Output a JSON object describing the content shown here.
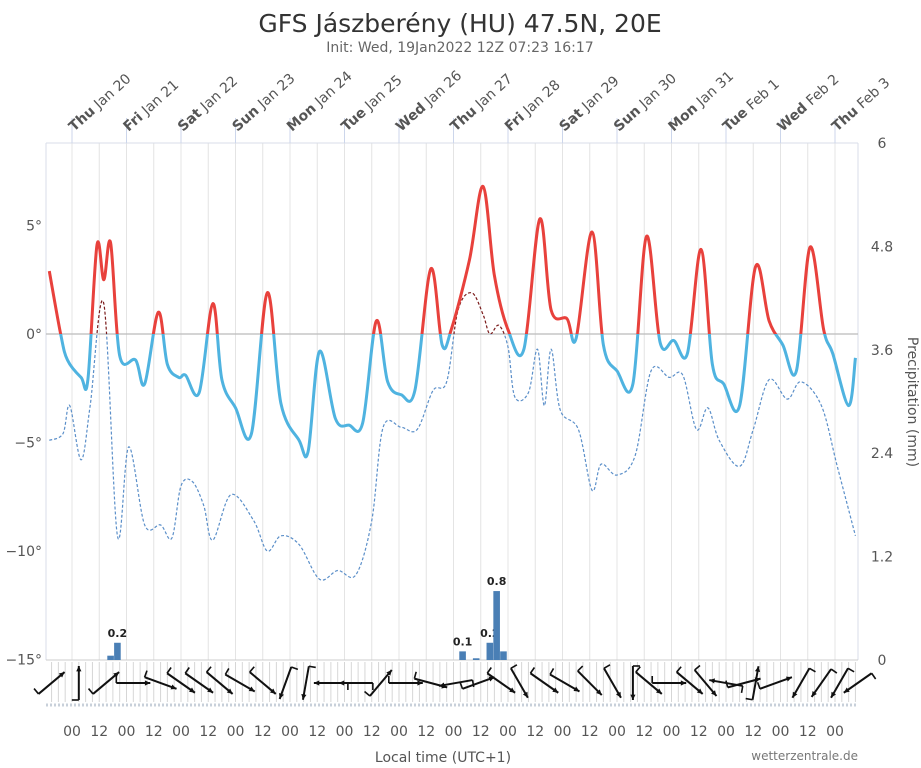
{
  "chart_data": {
    "type": "line",
    "title": "GFS Jászberény (HU) 47.5N, 20E",
    "subtitle": "Init: Wed, 19Jan2022 12Z 07:23 16:17",
    "xlabel": "Local time (UTC+1)",
    "ylabel_right": "Precipitation (mm)",
    "credit": "wetterzentrale.de",
    "top_day_labels": [
      {
        "dow": "Thu",
        "date": "Jan 20"
      },
      {
        "dow": "Fri",
        "date": "Jan 21"
      },
      {
        "dow": "Sat",
        "date": "Jan 22"
      },
      {
        "dow": "Sun",
        "date": "Jan 23"
      },
      {
        "dow": "Mon",
        "date": "Jan 24"
      },
      {
        "dow": "Tue",
        "date": "Jan 25"
      },
      {
        "dow": "Wed",
        "date": "Jan 26"
      },
      {
        "dow": "Thu",
        "date": "Jan 27"
      },
      {
        "dow": "Fri",
        "date": "Jan 28"
      },
      {
        "dow": "Sat",
        "date": "Jan 29"
      },
      {
        "dow": "Sun",
        "date": "Jan 30"
      },
      {
        "dow": "Mon",
        "date": "Jan 31"
      },
      {
        "dow": "Tue",
        "date": "Feb 1"
      },
      {
        "dow": "Wed",
        "date": "Feb 2"
      },
      {
        "dow": "Thu",
        "date": "Feb 3"
      }
    ],
    "bottom_tick_labels": [
      "00",
      "12",
      "00",
      "12",
      "00",
      "12",
      "00",
      "12",
      "00",
      "12",
      "00",
      "12",
      "00",
      "12",
      "00",
      "12",
      "00",
      "12",
      "00",
      "12",
      "00",
      "12",
      "00",
      "12",
      "00",
      "12",
      "00",
      "12",
      "00"
    ],
    "y_left": {
      "ticks": [
        "5°",
        "0°",
        "−5°",
        "−10°",
        "−15°"
      ],
      "values": [
        5,
        0,
        -5,
        -10,
        -15
      ],
      "range": [
        -15,
        8.7
      ]
    },
    "y_right": {
      "ticks": [
        "6",
        "4.8",
        "3.6",
        "2.4",
        "1.2",
        "0"
      ],
      "values": [
        6,
        4.8,
        3.6,
        2.4,
        1.2,
        0
      ],
      "range": [
        0,
        6
      ]
    },
    "colors": {
      "temp_above_zero": "#e8413c",
      "temp_below_zero": "#4fb3e0",
      "dew_above_zero": "#7a1a1a",
      "dew_below_zero": "#5b8fc9",
      "precip": "#4a7fb5",
      "zero_line": "#bbbbbb"
    },
    "series": [
      {
        "kind": "temperature",
        "style": "solid",
        "points": [
          [
            "01-19 14",
            2.9
          ],
          [
            "01-19 19",
            0
          ],
          [
            "01-19 22",
            -1.2
          ],
          [
            "01-20 04",
            -2.0
          ],
          [
            "01-20 07",
            -2.1
          ],
          [
            "01-20 11",
            4.1
          ],
          [
            "01-20 14",
            2.5
          ],
          [
            "01-20 17",
            4.2
          ],
          [
            "01-20 21",
            -1.0
          ],
          [
            "01-21 04",
            -1.2
          ],
          [
            "01-21 08",
            -2.3
          ],
          [
            "01-21 14",
            1.0
          ],
          [
            "01-21 18",
            -1.4
          ],
          [
            "01-21 23",
            -2.0
          ],
          [
            "01-22 02",
            -1.9
          ],
          [
            "01-22 08",
            -2.7
          ],
          [
            "01-22 14",
            1.4
          ],
          [
            "01-22 18",
            -2.1
          ],
          [
            "01-23 00",
            -3.4
          ],
          [
            "01-23 07",
            -4.6
          ],
          [
            "01-23 14",
            1.9
          ],
          [
            "01-23 20",
            -3.2
          ],
          [
            "01-24 04",
            -4.9
          ],
          [
            "01-24 08",
            -5.4
          ],
          [
            "01-24 13",
            -0.8
          ],
          [
            "01-24 20",
            -3.9
          ],
          [
            "01-25 02",
            -4.2
          ],
          [
            "01-25 08",
            -4.1
          ],
          [
            "01-25 14",
            0.6
          ],
          [
            "01-25 19",
            -2.2
          ],
          [
            "01-26 01",
            -2.8
          ],
          [
            "01-26 07",
            -2.6
          ],
          [
            "01-26 14",
            3.0
          ],
          [
            "01-26 19",
            -0.5
          ],
          [
            "01-26 23",
            0.2
          ],
          [
            "01-27 07",
            3.4
          ],
          [
            "01-27 13",
            6.8
          ],
          [
            "01-27 18",
            2.7
          ],
          [
            "01-28 00",
            0.2
          ],
          [
            "01-28 07",
            -0.7
          ],
          [
            "01-28 14",
            5.3
          ],
          [
            "01-28 19",
            1.1
          ],
          [
            "01-29 02",
            0.7
          ],
          [
            "01-29 06",
            -0.2
          ],
          [
            "01-29 13",
            4.7
          ],
          [
            "01-29 18",
            -0.5
          ],
          [
            "01-30 00",
            -1.7
          ],
          [
            "01-30 07",
            -2.3
          ],
          [
            "01-30 13",
            4.5
          ],
          [
            "01-30 19",
            -0.4
          ],
          [
            "01-31 01",
            -0.3
          ],
          [
            "01-31 07",
            -0.9
          ],
          [
            "01-31 13",
            3.9
          ],
          [
            "01-31 18",
            -1.4
          ],
          [
            "01-31 23",
            -2.3
          ],
          [
            "02-01 06",
            -3.3
          ],
          [
            "02-01 13",
            3.1
          ],
          [
            "02-01 19",
            0.6
          ],
          [
            "02-02 01",
            -0.5
          ],
          [
            "02-02 07",
            -1.7
          ],
          [
            "02-02 13",
            4.0
          ],
          [
            "02-02 19",
            0.2
          ],
          [
            "02-02 23",
            -0.9
          ],
          [
            "02-03 06",
            -3.3
          ],
          [
            "02-03 09",
            -1.1
          ]
        ]
      },
      {
        "kind": "dewpoint",
        "style": "dashed",
        "points": [
          [
            "01-19 14",
            -4.9
          ],
          [
            "01-19 20",
            -4.6
          ],
          [
            "01-19 23",
            -3.3
          ],
          [
            "01-20 04",
            -5.8
          ],
          [
            "01-20 08",
            -3.3
          ],
          [
            "01-20 14",
            1.4
          ],
          [
            "01-20 20",
            -9.3
          ],
          [
            "01-21 01",
            -5.2
          ],
          [
            "01-21 08",
            -8.8
          ],
          [
            "01-21 15",
            -8.8
          ],
          [
            "01-21 20",
            -9.4
          ],
          [
            "01-22 00",
            -7.0
          ],
          [
            "01-22 05",
            -6.8
          ],
          [
            "01-22 10",
            -7.9
          ],
          [
            "01-22 14",
            -9.5
          ],
          [
            "01-22 22",
            -7.4
          ],
          [
            "01-23 08",
            -8.6
          ],
          [
            "01-23 14",
            -10.0
          ],
          [
            "01-23 20",
            -9.3
          ],
          [
            "01-24 04",
            -9.7
          ],
          [
            "01-24 13",
            -11.3
          ],
          [
            "01-24 21",
            -10.9
          ],
          [
            "01-25 05",
            -11.1
          ],
          [
            "01-25 12",
            -8.6
          ],
          [
            "01-25 17",
            -4.3
          ],
          [
            "01-26 01",
            -4.3
          ],
          [
            "01-26 08",
            -4.4
          ],
          [
            "01-26 15",
            -2.6
          ],
          [
            "01-26 21",
            -2.2
          ],
          [
            "01-27 02",
            1.1
          ],
          [
            "01-27 08",
            1.9
          ],
          [
            "01-27 13",
            0.9
          ],
          [
            "01-27 16",
            0
          ],
          [
            "01-27 20",
            0.4
          ],
          [
            "01-28 00",
            -0.6
          ],
          [
            "01-28 03",
            -2.9
          ],
          [
            "01-28 09",
            -2.7
          ],
          [
            "01-28 13",
            -0.7
          ],
          [
            "01-28 16",
            -3.3
          ],
          [
            "01-28 19",
            -0.7
          ],
          [
            "01-28 23",
            -3.5
          ],
          [
            "01-29 07",
            -4.4
          ],
          [
            "01-29 13",
            -7.2
          ],
          [
            "01-29 17",
            -6.0
          ],
          [
            "01-30 00",
            -6.5
          ],
          [
            "01-30 08",
            -5.6
          ],
          [
            "01-30 15",
            -1.7
          ],
          [
            "01-30 23",
            -2.0
          ],
          [
            "01-31 05",
            -1.9
          ],
          [
            "01-31 11",
            -4.4
          ],
          [
            "01-31 16",
            -3.4
          ],
          [
            "01-31 21",
            -4.9
          ],
          [
            "02-01 06",
            -6.1
          ],
          [
            "02-01 12",
            -4.4
          ],
          [
            "02-01 19",
            -2.1
          ],
          [
            "02-02 03",
            -3.0
          ],
          [
            "02-02 09",
            -2.2
          ],
          [
            "02-02 18",
            -3.3
          ],
          [
            "02-03 01",
            -6.1
          ],
          [
            "02-03 09",
            -9.3
          ]
        ]
      }
    ],
    "precipitation": [
      {
        "t": "01-20 17",
        "mm": 0.05,
        "label": ""
      },
      {
        "t": "01-20 20",
        "mm": 0.2,
        "label": "0.2"
      },
      {
        "t": "01-27 04",
        "mm": 0.1,
        "label": "0.1"
      },
      {
        "t": "01-27 10",
        "mm": 0.02,
        "label": ""
      },
      {
        "t": "01-27 16",
        "mm": 0.2,
        "label": "0.2"
      },
      {
        "t": "01-27 19",
        "mm": 0.8,
        "label": "0.8"
      },
      {
        "t": "01-27 22",
        "mm": 0.1,
        "label": ""
      }
    ],
    "wind_arrows_heading_deg": [
      [
        "01-19 15",
        50
      ],
      [
        "01-20 03",
        0
      ],
      [
        "01-20 15",
        50
      ],
      [
        "01-21 03",
        90
      ],
      [
        "01-21 15",
        110
      ],
      [
        "01-22 00",
        125
      ],
      [
        "01-22 08",
        125
      ],
      [
        "01-22 17",
        130
      ],
      [
        "01-23 02",
        120
      ],
      [
        "01-23 12",
        130
      ],
      [
        "01-23 22",
        200
      ],
      [
        "01-24 07",
        190
      ],
      [
        "01-24 18",
        270
      ],
      [
        "01-25 05",
        270
      ],
      [
        "01-25 16",
        40
      ],
      [
        "01-26 03",
        90
      ],
      [
        "01-26 14",
        105
      ],
      [
        "01-27 01",
        260
      ],
      [
        "01-27 11",
        70
      ],
      [
        "01-27 21",
        125
      ],
      [
        "01-28 05",
        150
      ],
      [
        "01-28 16",
        125
      ],
      [
        "01-29 01",
        120
      ],
      [
        "01-29 12",
        135
      ],
      [
        "01-29 22",
        150
      ],
      [
        "01-30 07",
        180
      ],
      [
        "01-30 14",
        130
      ],
      [
        "01-30 23",
        90
      ],
      [
        "01-31 08",
        130
      ],
      [
        "01-31 15",
        140
      ],
      [
        "02-01 00",
        280
      ],
      [
        "02-01 08",
        75
      ],
      [
        "02-01 13",
        10
      ],
      [
        "02-01 22",
        70
      ],
      [
        "02-02 09",
        210
      ],
      [
        "02-02 18",
        215
      ],
      [
        "02-03 02",
        210
      ],
      [
        "02-03 10",
        235
      ]
    ]
  }
}
